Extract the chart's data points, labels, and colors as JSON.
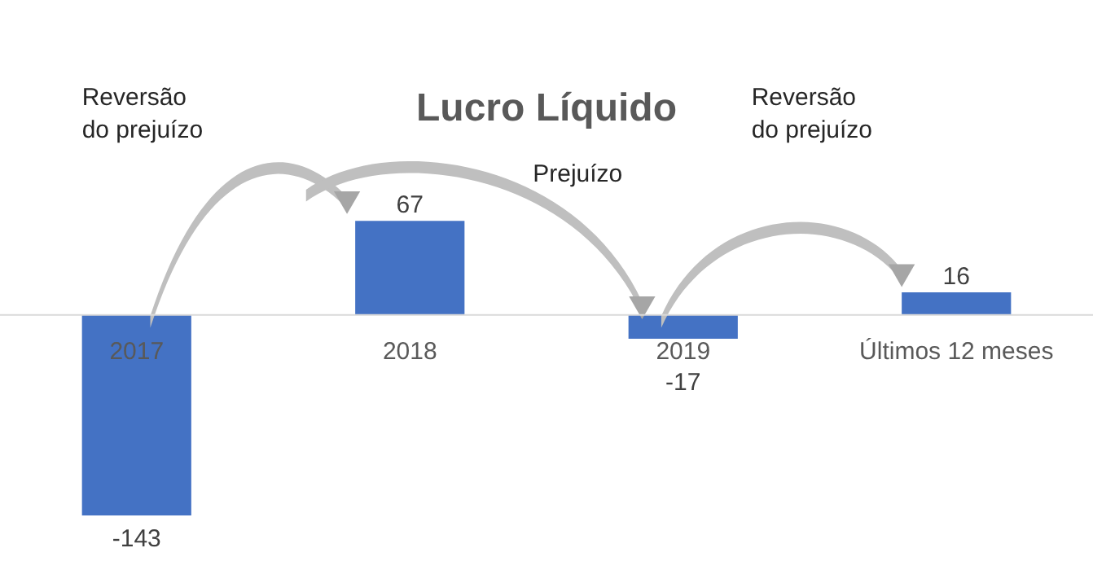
{
  "chart_data": {
    "type": "bar",
    "title": "Lucro Líquido",
    "categories": [
      "2017",
      "2018",
      "2019",
      "Últimos 12 meses"
    ],
    "values": [
      -143,
      67,
      -17,
      16
    ],
    "color": "#4472c4",
    "data_labels": true,
    "annotations": [
      "Reversão\ndo prejuízo",
      "Prejuízo",
      "Reversão\ndo prejuízo"
    ]
  }
}
